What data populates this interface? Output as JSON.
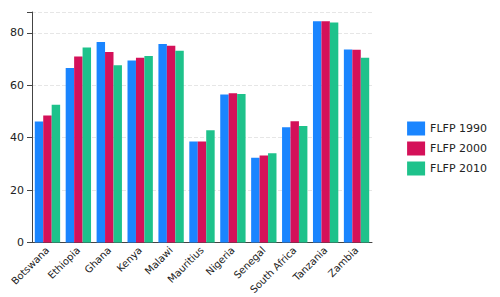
{
  "chart_data": {
    "type": "bar",
    "categories": [
      "Botswana",
      "Ethiopia",
      "Ghana",
      "Kenya",
      "Malawi",
      "Mauritius",
      "Nigeria",
      "Senegal",
      "South Africa",
      "Tanzania",
      "Zambia"
    ],
    "series": [
      {
        "name": "FLFP 1990",
        "color": "#1a85ff",
        "values": [
          46.2,
          66.6,
          76.5,
          69.5,
          75.8,
          38.5,
          56.5,
          32.3,
          44.0,
          84.5,
          73.7
        ]
      },
      {
        "name": "FLFP 2000",
        "color": "#d41159",
        "values": [
          48.5,
          71.0,
          72.7,
          70.5,
          75.1,
          38.5,
          57.0,
          33.2,
          46.3,
          84.5,
          73.6
        ]
      },
      {
        "name": "FLFP 2010",
        "color": "#1ec28b",
        "values": [
          52.6,
          74.4,
          67.7,
          71.2,
          73.2,
          42.8,
          56.7,
          34.0,
          44.5,
          84.0,
          70.5
        ]
      }
    ],
    "ylim": [
      0,
      88
    ],
    "yticks": [
      0,
      20,
      40,
      60,
      80
    ],
    "grid": true,
    "legend": "right"
  }
}
